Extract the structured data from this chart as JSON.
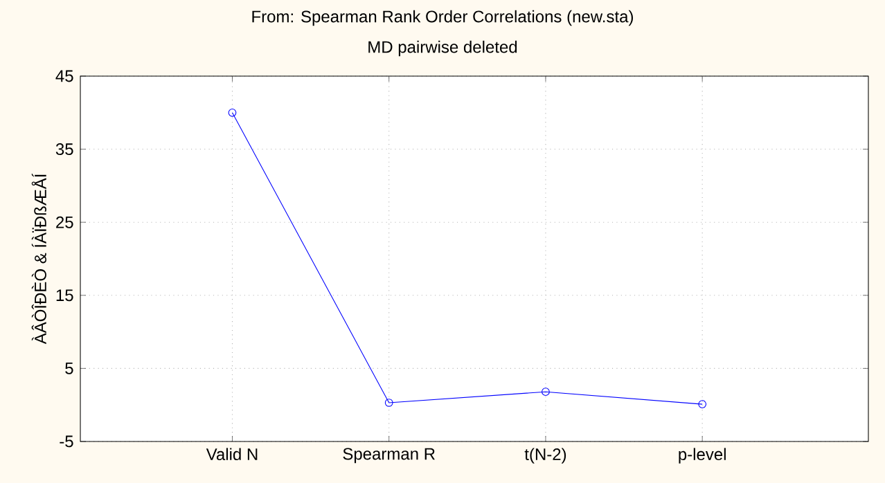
{
  "chart_data": {
    "type": "line",
    "title": "From: Spearman Rank Order Correlations (new.sta)",
    "subtitle": "MD pairwise deleted",
    "ylabel": "ÀÂÒÎÐÈÒ & ÍÀÏÐßÆÅÍ",
    "categories": [
      "Valid N",
      "Spearman R",
      "t(N-2)",
      "p-level"
    ],
    "series": [
      {
        "color": "#0000ff",
        "values": [
          40,
          0.3,
          1.8,
          0.1
        ]
      }
    ],
    "ylim": [
      -5,
      45
    ],
    "yticks": [
      -5,
      5,
      15,
      25,
      35,
      45
    ],
    "grid": true,
    "marker": "circle",
    "line_style": "solid"
  }
}
